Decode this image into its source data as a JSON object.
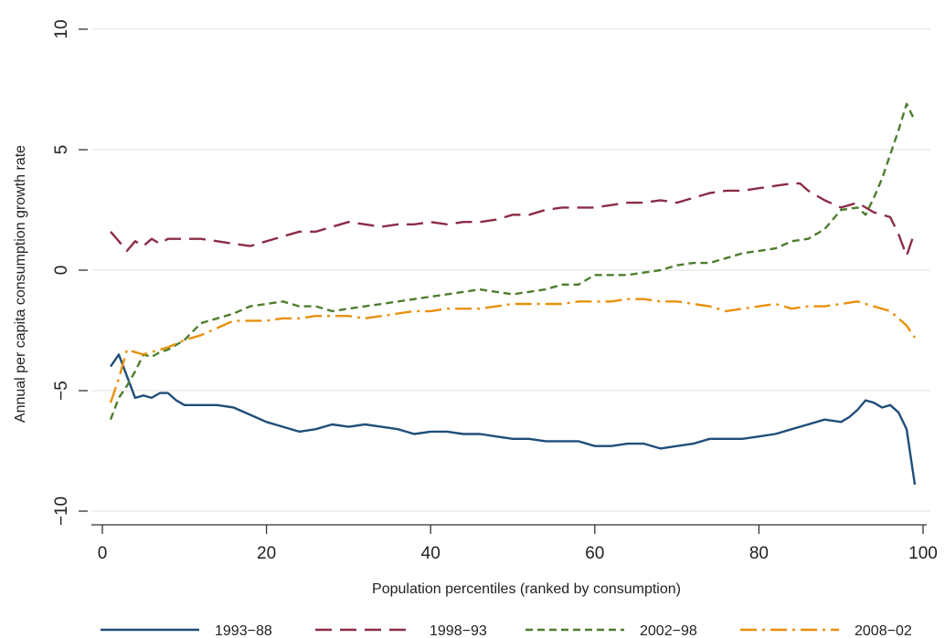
{
  "chart_data": {
    "type": "line",
    "xlabel": "Population percentiles (ranked by consumption)",
    "ylabel": "Annual per capita consumption growth rate",
    "xlim": [
      0,
      100
    ],
    "ylim": [
      -10,
      10
    ],
    "x_ticks": [
      0,
      20,
      40,
      60,
      80,
      100
    ],
    "y_ticks": [
      -10,
      -5,
      0,
      5,
      10
    ],
    "grid": "horizontal",
    "legend_position": "bottom",
    "series": [
      {
        "name": "1993−88",
        "color": "#1f4e79",
        "dash": "solid",
        "x": [
          1,
          2,
          3,
          4,
          5,
          6,
          7,
          8,
          9,
          10,
          12,
          14,
          16,
          18,
          20,
          22,
          24,
          26,
          28,
          30,
          32,
          34,
          36,
          38,
          40,
          42,
          44,
          46,
          48,
          50,
          52,
          54,
          56,
          58,
          60,
          62,
          64,
          66,
          68,
          70,
          72,
          74,
          76,
          78,
          80,
          82,
          84,
          86,
          88,
          90,
          91,
          92,
          93,
          94,
          95,
          96,
          97,
          98,
          99
        ],
        "values": [
          -4.0,
          -3.5,
          -4.4,
          -5.3,
          -5.2,
          -5.3,
          -5.1,
          -5.1,
          -5.4,
          -5.6,
          -5.6,
          -5.6,
          -5.7,
          -6.0,
          -6.3,
          -6.5,
          -6.7,
          -6.6,
          -6.4,
          -6.5,
          -6.4,
          -6.5,
          -6.6,
          -6.8,
          -6.7,
          -6.7,
          -6.8,
          -6.8,
          -6.9,
          -7.0,
          -7.0,
          -7.1,
          -7.1,
          -7.1,
          -7.3,
          -7.3,
          -7.2,
          -7.2,
          -7.4,
          -7.3,
          -7.2,
          -7.0,
          -7.0,
          -7.0,
          -6.9,
          -6.8,
          -6.6,
          -6.4,
          -6.2,
          -6.3,
          -6.1,
          -5.8,
          -5.4,
          -5.5,
          -5.7,
          -5.6,
          -5.9,
          -6.6,
          -8.9
        ]
      },
      {
        "name": "1998−93",
        "color": "#8b2c45",
        "dash": "longdash",
        "x": [
          1,
          2,
          3,
          4,
          5,
          6,
          7,
          8,
          10,
          12,
          14,
          16,
          18,
          20,
          22,
          24,
          26,
          28,
          30,
          32,
          34,
          36,
          38,
          40,
          42,
          44,
          46,
          48,
          50,
          52,
          54,
          56,
          58,
          60,
          62,
          64,
          66,
          68,
          70,
          72,
          74,
          76,
          78,
          80,
          82,
          84,
          85,
          86,
          88,
          90,
          92,
          94,
          96,
          97,
          98,
          99
        ],
        "values": [
          1.6,
          1.2,
          0.8,
          1.2,
          1.0,
          1.3,
          1.1,
          1.3,
          1.3,
          1.3,
          1.2,
          1.1,
          1.0,
          1.2,
          1.4,
          1.6,
          1.6,
          1.8,
          2.0,
          1.9,
          1.8,
          1.9,
          1.9,
          2.0,
          1.9,
          2.0,
          2.0,
          2.1,
          2.3,
          2.3,
          2.5,
          2.6,
          2.6,
          2.6,
          2.7,
          2.8,
          2.8,
          2.9,
          2.8,
          3.0,
          3.2,
          3.3,
          3.3,
          3.4,
          3.5,
          3.6,
          3.6,
          3.3,
          2.9,
          2.6,
          2.8,
          2.4,
          2.2,
          1.5,
          0.6,
          1.6
        ]
      },
      {
        "name": "2002−98",
        "color": "#4e7d2e",
        "dash": "shortdash",
        "x": [
          1,
          2,
          3,
          4,
          5,
          6,
          7,
          8,
          10,
          12,
          14,
          16,
          18,
          20,
          22,
          24,
          26,
          28,
          30,
          32,
          34,
          36,
          38,
          40,
          42,
          44,
          46,
          48,
          50,
          52,
          54,
          56,
          58,
          60,
          62,
          64,
          66,
          68,
          70,
          72,
          74,
          76,
          78,
          80,
          82,
          84,
          86,
          88,
          90,
          92,
          93,
          94,
          95,
          96,
          97,
          98,
          99
        ],
        "values": [
          -6.2,
          -5.3,
          -4.8,
          -4.2,
          -3.5,
          -3.6,
          -3.4,
          -3.3,
          -2.9,
          -2.2,
          -2.0,
          -1.8,
          -1.5,
          -1.4,
          -1.3,
          -1.5,
          -1.5,
          -1.7,
          -1.6,
          -1.5,
          -1.4,
          -1.3,
          -1.2,
          -1.1,
          -1.0,
          -0.9,
          -0.8,
          -0.9,
          -1.0,
          -0.9,
          -0.8,
          -0.6,
          -0.6,
          -0.2,
          -0.2,
          -0.2,
          -0.1,
          0.0,
          0.2,
          0.3,
          0.3,
          0.5,
          0.7,
          0.8,
          0.9,
          1.2,
          1.3,
          1.7,
          2.5,
          2.6,
          2.3,
          3.0,
          3.8,
          4.8,
          5.8,
          6.9,
          6.2
        ]
      },
      {
        "name": "2008−02",
        "color": "#e8900c",
        "dash": "dashdot",
        "x": [
          1,
          2,
          3,
          4,
          5,
          6,
          7,
          8,
          10,
          12,
          14,
          16,
          18,
          20,
          22,
          24,
          26,
          28,
          30,
          32,
          34,
          36,
          38,
          40,
          42,
          44,
          46,
          48,
          50,
          52,
          54,
          56,
          58,
          60,
          62,
          64,
          66,
          68,
          70,
          72,
          74,
          76,
          78,
          80,
          82,
          84,
          86,
          88,
          90,
          92,
          94,
          96,
          98,
          99
        ],
        "values": [
          -5.5,
          -4.5,
          -3.3,
          -3.4,
          -3.5,
          -3.4,
          -3.3,
          -3.2,
          -2.9,
          -2.7,
          -2.4,
          -2.1,
          -2.1,
          -2.1,
          -2.0,
          -2.0,
          -1.9,
          -1.9,
          -1.9,
          -2.0,
          -1.9,
          -1.8,
          -1.7,
          -1.7,
          -1.6,
          -1.6,
          -1.6,
          -1.5,
          -1.4,
          -1.4,
          -1.4,
          -1.4,
          -1.3,
          -1.3,
          -1.3,
          -1.2,
          -1.2,
          -1.3,
          -1.3,
          -1.4,
          -1.5,
          -1.7,
          -1.6,
          -1.5,
          -1.4,
          -1.6,
          -1.5,
          -1.5,
          -1.4,
          -1.3,
          -1.5,
          -1.7,
          -2.3,
          -2.8
        ]
      }
    ]
  }
}
